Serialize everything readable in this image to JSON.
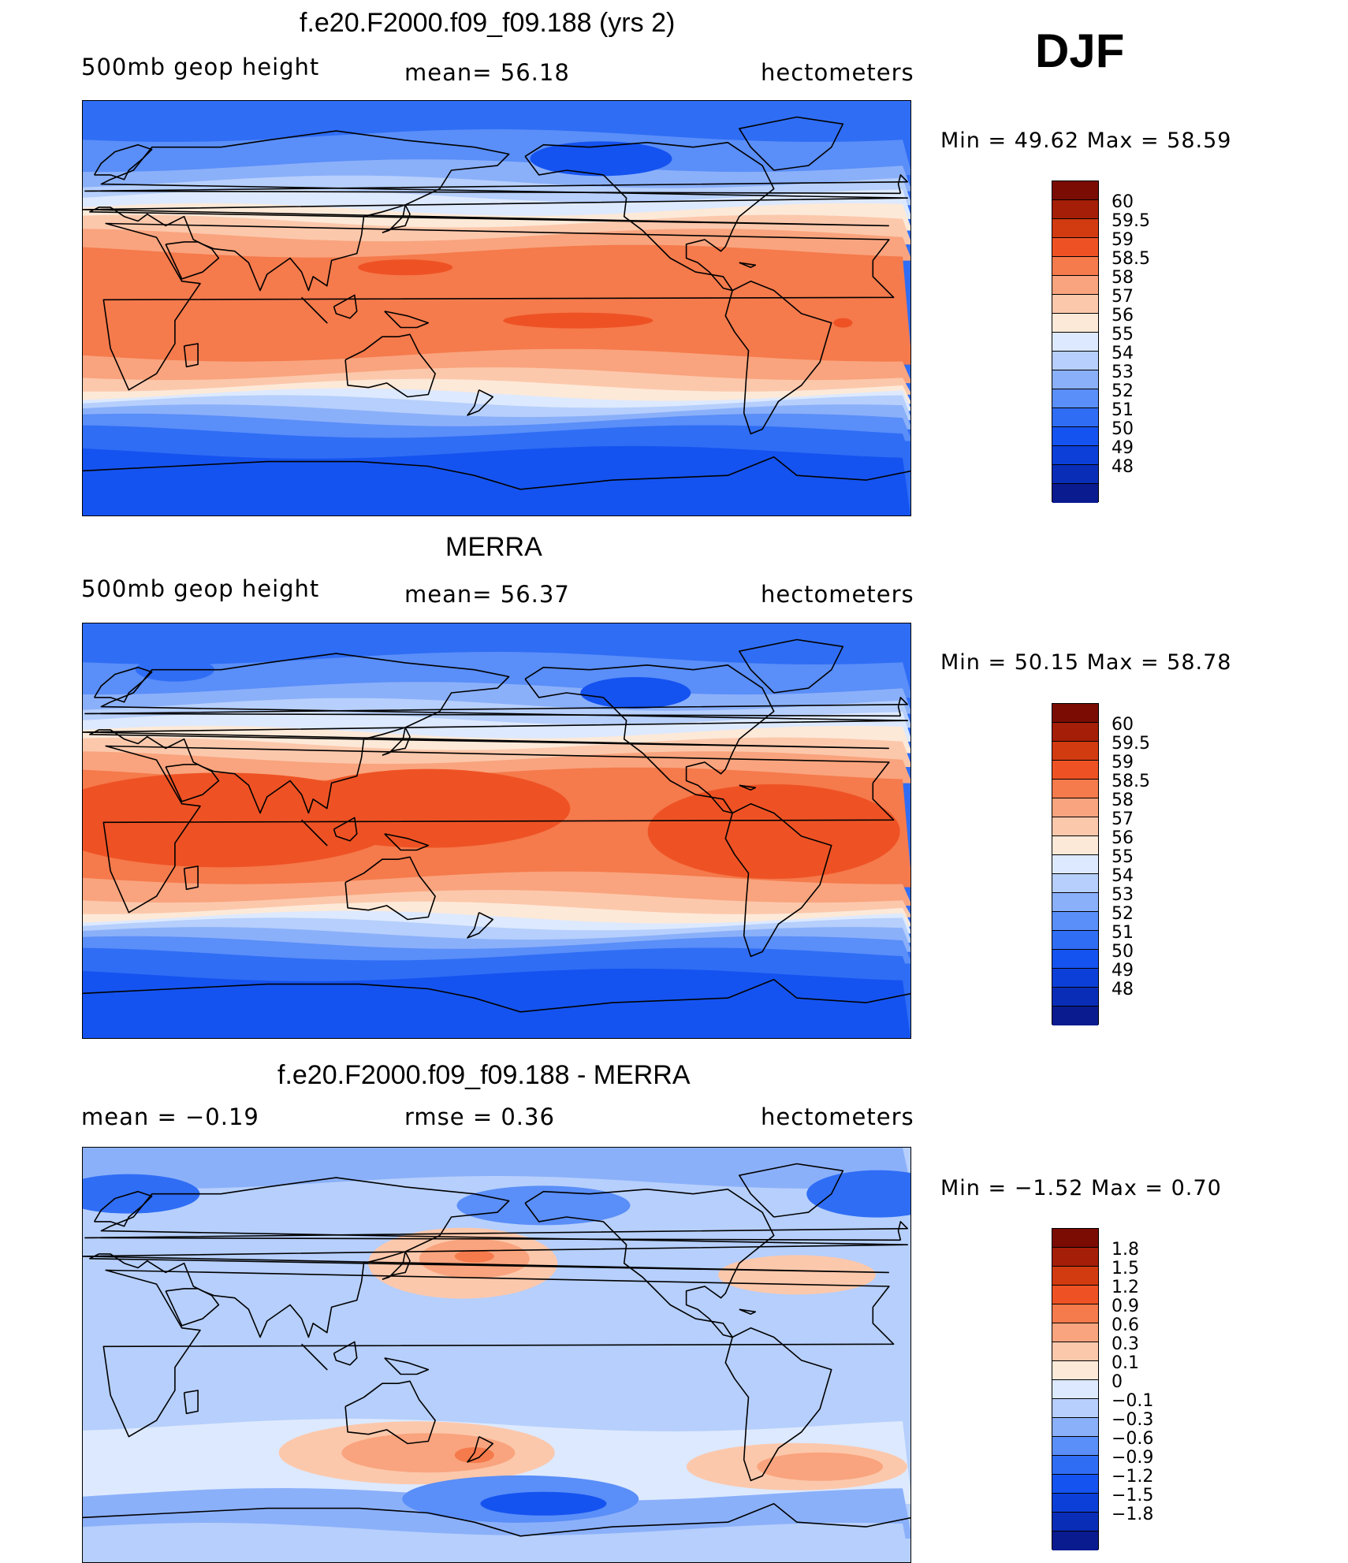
{
  "season": "DJF",
  "colors": {
    "height_scale": [
      "#0a1a8f",
      "#0a2db8",
      "#0c3fd8",
      "#1553f0",
      "#2f6df5",
      "#5a8ef8",
      "#8bb0fa",
      "#b6cffc",
      "#dde9fe",
      "#fde9d8",
      "#fcc8ac",
      "#f9a47e",
      "#f57a4c",
      "#ee5224",
      "#d23a10",
      "#a51e08",
      "#7a0c04"
    ],
    "diff_scale": [
      "#0a1a8f",
      "#0a2db8",
      "#0c3fd8",
      "#1553f0",
      "#2f6df5",
      "#5a8ef8",
      "#8bb0fa",
      "#b6cffc",
      "#dde9fe",
      "#fde9d8",
      "#fcc8ac",
      "#f9a47e",
      "#f57a4c",
      "#ee5224",
      "#d23a10",
      "#a51e08",
      "#7a0c04"
    ]
  },
  "panels": [
    {
      "title": "f.e20.F2000.f09_f09.188 (yrs 2)",
      "left_label": "500mb  geop  height",
      "center_label": "mean=   56.18",
      "units": "hectometers",
      "minmax": "Min  =    49.62  Max  =    58.59",
      "map_style": "model",
      "colorbar_labels": [
        "60",
        "59.5",
        "59",
        "58.5",
        "58",
        "57",
        "56",
        "55",
        "54",
        "53",
        "52",
        "51",
        "50",
        "49",
        "48"
      ]
    },
    {
      "title": "MERRA",
      "left_label": "500mb  geop  height",
      "center_label": "mean=   56.37",
      "units": "hectometers",
      "minmax": "Min  =    50.15  Max  =    58.78",
      "map_style": "obs",
      "colorbar_labels": [
        "60",
        "59.5",
        "59",
        "58.5",
        "58",
        "57",
        "56",
        "55",
        "54",
        "53",
        "52",
        "51",
        "50",
        "49",
        "48"
      ]
    },
    {
      "title": "f.e20.F2000.f09_f09.188 - MERRA",
      "left_label": "mean  =    −0.19",
      "center_label": "rmse  =     0.36",
      "units": "hectometers",
      "minmax": "Min  =   −1.52  Max  =      0.70",
      "map_style": "diff",
      "colorbar_labels": [
        "1.8",
        "1.5",
        "1.2",
        "0.9",
        "0.6",
        "0.3",
        "0.1",
        "0",
        "−0.1",
        "−0.3",
        "−0.6",
        "−0.9",
        "−1.2",
        "−1.5",
        "−1.8"
      ]
    }
  ]
}
